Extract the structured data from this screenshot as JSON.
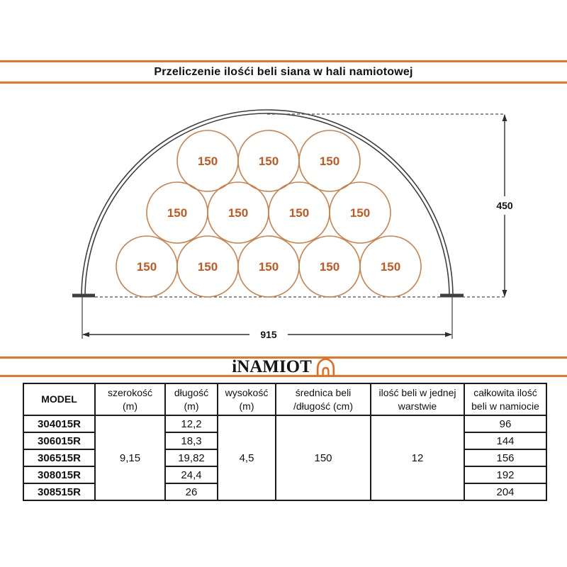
{
  "title": "Przeliczenie ilośći beli siana w hali namiotowej",
  "logo": {
    "text": "iNAMIOT",
    "icon": "tent-arch-icon"
  },
  "colors": {
    "accent_orange": "#e87428",
    "frame_gray": "#3f3f3f",
    "dim_gray": "#4d4d4d",
    "bale_stroke": "#c8824e",
    "bale_text": "#c2571f"
  },
  "diagram": {
    "type": "tent-cross-section-with-hay-bales",
    "height_label": "450",
    "width_label": "915",
    "bale_label": "150",
    "bale_rows_bottom_to_top": [
      5,
      4,
      3
    ],
    "total_bales": 12
  },
  "table": {
    "headers": [
      {
        "l1": "MODEL",
        "l2": ""
      },
      {
        "l1": "szerokość",
        "l2": "(m)"
      },
      {
        "l1": "długość",
        "l2": "(m)"
      },
      {
        "l1": "wysokość",
        "l2": "(m)"
      },
      {
        "l1": "średnica beli",
        "l2": "/długość (cm)"
      },
      {
        "l1": "ilość beli w jednej",
        "l2": "warstwie"
      },
      {
        "l1": "całkowita ilość",
        "l2": "beli w namiocie"
      }
    ],
    "merged": {
      "szerokosc": "9,15",
      "wysokosc": "4,5",
      "srednica": "150",
      "warstwa": "12"
    },
    "rows": [
      {
        "model": "304015R",
        "dlugosc": "12,2",
        "total": "96"
      },
      {
        "model": "306015R",
        "dlugosc": "18,3",
        "total": "144"
      },
      {
        "model": "306515R",
        "dlugosc": "19,82",
        "total": "156"
      },
      {
        "model": "308015R",
        "dlugosc": "24,4",
        "total": "192"
      },
      {
        "model": "308515R",
        "dlugosc": "26",
        "total": "204"
      }
    ]
  }
}
